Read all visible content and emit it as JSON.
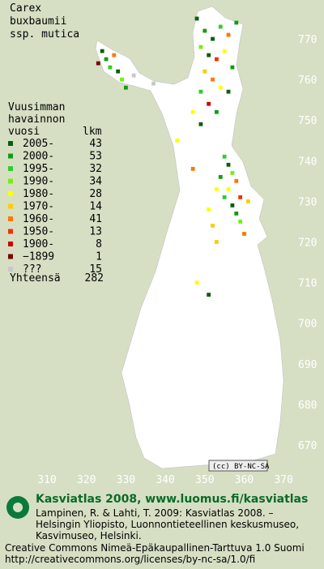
{
  "title": [
    "Carex",
    "buxbaumii",
    "ssp. mutica"
  ],
  "legend": {
    "heading": [
      "Vuusimman",
      "havainnon",
      "vuosi"
    ],
    "count_heading": "lkm",
    "items": [
      {
        "label": "2005-",
        "count": 43,
        "color": "#0b5e0b"
      },
      {
        "label": "2000-",
        "count": 53,
        "color": "#139c13"
      },
      {
        "label": "1995-",
        "count": 32,
        "color": "#30cc30"
      },
      {
        "label": "1990-",
        "count": 34,
        "color": "#77ee11"
      },
      {
        "label": "1980-",
        "count": 28,
        "color": "#ffff00"
      },
      {
        "label": "1970-",
        "count": 14,
        "color": "#ffcc00"
      },
      {
        "label": "1960-",
        "count": 41,
        "color": "#ff7700"
      },
      {
        "label": "1950-",
        "count": 13,
        "color": "#ee3300"
      },
      {
        "label": "1900-",
        "count": 8,
        "color": "#cc0000"
      },
      {
        "label": "−1899",
        "count": 1,
        "color": "#7a0000"
      },
      {
        "label": "???",
        "count": 15,
        "color": "#c8c8c8"
      }
    ],
    "total_label": "Yhteensä",
    "total": 282
  },
  "northing_ticks": [
    770,
    760,
    750,
    740,
    730,
    720,
    710,
    700,
    690,
    680,
    670
  ],
  "easting_ticks": [
    310,
    320,
    330,
    340,
    350,
    360,
    370
  ],
  "occurrences": [
    [
      348,
      775,
      0
    ],
    [
      350,
      772,
      1
    ],
    [
      352,
      770,
      0
    ],
    [
      354,
      773,
      2
    ],
    [
      356,
      771,
      6
    ],
    [
      358,
      774,
      1
    ],
    [
      349,
      768,
      3
    ],
    [
      351,
      766,
      0
    ],
    [
      353,
      765,
      7
    ],
    [
      355,
      767,
      4
    ],
    [
      357,
      763,
      1
    ],
    [
      350,
      762,
      5
    ],
    [
      352,
      760,
      6
    ],
    [
      354,
      758,
      4
    ],
    [
      356,
      757,
      0
    ],
    [
      349,
      757,
      2
    ],
    [
      351,
      754,
      8
    ],
    [
      347,
      752,
      4
    ],
    [
      353,
      752,
      1
    ],
    [
      324,
      767,
      0
    ],
    [
      325,
      765,
      1
    ],
    [
      326,
      763,
      2
    ],
    [
      327,
      766,
      6
    ],
    [
      328,
      762,
      0
    ],
    [
      329,
      760,
      3
    ],
    [
      330,
      758,
      1
    ],
    [
      323,
      764,
      9
    ],
    [
      332,
      761,
      10
    ],
    [
      337,
      759,
      10
    ],
    [
      355,
      741,
      2
    ],
    [
      356,
      739,
      0
    ],
    [
      357,
      737,
      3
    ],
    [
      354,
      736,
      1
    ],
    [
      358,
      735,
      6
    ],
    [
      356,
      733,
      4
    ],
    [
      359,
      731,
      7
    ],
    [
      361,
      730,
      5
    ],
    [
      357,
      729,
      0
    ],
    [
      355,
      731,
      2
    ],
    [
      358,
      727,
      1
    ],
    [
      359,
      725,
      3
    ],
    [
      360,
      722,
      6
    ],
    [
      353,
      733,
      4
    ],
    [
      351,
      728,
      4
    ],
    [
      352,
      724,
      5
    ],
    [
      347,
      738,
      6
    ],
    [
      343,
      745,
      4
    ],
    [
      349,
      749,
      0
    ],
    [
      353,
      720,
      5
    ],
    [
      348,
      710,
      4
    ],
    [
      351,
      707,
      0
    ]
  ],
  "license_badge": "(cc) BY-NC-SA",
  "footer": {
    "heading": "Kasviatlas 2008, www.luomus.fi/kasviatlas",
    "citation": [
      "Lampinen, R. & Lahti, T. 2009: Kasviatlas 2008. –",
      "Helsingin Yliopisto, Luonnontieteellinen keskusmuseo,",
      "Kasvimuseo, Helsinki."
    ],
    "license": [
      "Creative Commons Nimeä-Epäkaupallinen-Tarttuva 1.0 Suomi",
      "http://creativecommons.org/licenses/by-nc-sa/1.0/fi"
    ]
  }
}
